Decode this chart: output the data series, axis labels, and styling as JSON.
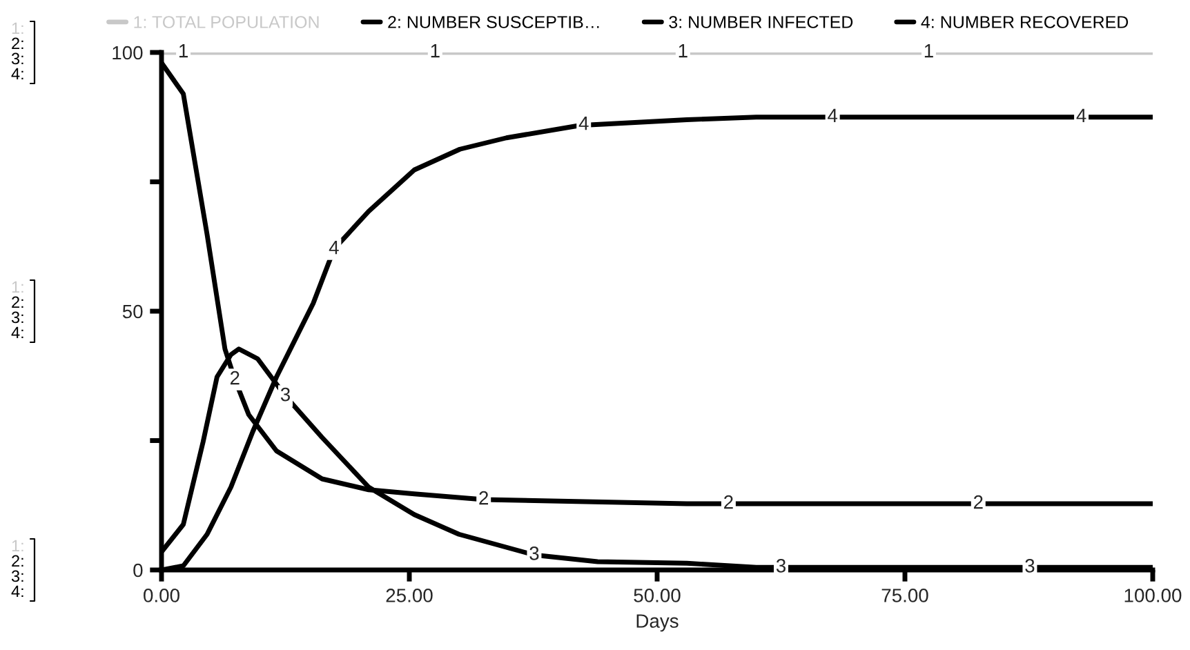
{
  "chart_data": {
    "type": "line",
    "xlabel": "Days",
    "xlim": [
      0,
      100
    ],
    "ylim": [
      0,
      100
    ],
    "xticks": [
      {
        "value": 0,
        "label": "0.00"
      },
      {
        "value": 25,
        "label": "25.00"
      },
      {
        "value": 50,
        "label": "50.00"
      },
      {
        "value": 75,
        "label": "75.00"
      },
      {
        "value": 100,
        "label": "100.00"
      }
    ],
    "yticks": [
      0,
      {
        "value": 25,
        "label": null
      },
      50,
      {
        "value": 75,
        "label": null
      },
      100
    ],
    "grid": false,
    "legend": "top",
    "marker": "none",
    "line_style": "solid",
    "series": [
      {
        "name": "1: TOTAL POPULATION",
        "color": "#c8c8c8",
        "x": [
          0,
          100
        ],
        "values": [
          100,
          100
        ]
      },
      {
        "name": "2: NUMBER SUSCEPTIB…",
        "color": "#000000",
        "x": [
          0,
          2.2,
          4.6,
          6.4,
          7.4,
          8.8,
          11.6,
          16.2,
          20.9,
          25.5,
          32.5,
          53,
          100
        ],
        "values": [
          98,
          92,
          64.8,
          42.7,
          36.8,
          30,
          23,
          17.6,
          15.5,
          14.7,
          13.6,
          12.8,
          12.8
        ]
      },
      {
        "name": "3: NUMBER INFECTED",
        "color": "#000000",
        "x": [
          0,
          2.2,
          4.2,
          5.6,
          7,
          7.8,
          9.7,
          12.5,
          16.2,
          20.9,
          25.5,
          30,
          37.6,
          44,
          53,
          60,
          100
        ],
        "values": [
          3.5,
          8.8,
          24.8,
          37.3,
          41.6,
          42.7,
          40.8,
          33.6,
          25.6,
          16,
          10.7,
          6.9,
          2.9,
          1.6,
          1.3,
          0.5,
          0.5
        ]
      },
      {
        "name": "4: NUMBER RECOVERED",
        "color": "#000000",
        "x": [
          0,
          2.2,
          4.6,
          7,
          9.2,
          11.6,
          15.3,
          17.4,
          20.9,
          25.5,
          30.1,
          34.8,
          42.2,
          53,
          60,
          100
        ],
        "values": [
          0,
          0.8,
          6.9,
          16,
          26.7,
          37.3,
          51.5,
          62,
          69.3,
          77.3,
          81.3,
          83.5,
          85.9,
          87,
          87.5,
          87.5
        ]
      }
    ],
    "annotations": [
      "1:",
      "2:",
      "3:",
      "4:",
      "1:",
      "2:",
      "3:",
      "4:",
      "1:",
      "2:",
      "3:",
      "4:",
      {
        "text": "1",
        "x": 2.2,
        "y": 100
      },
      {
        "text": "1",
        "x": 27.6,
        "y": 100
      },
      {
        "text": "1",
        "x": 52.6,
        "y": 100
      },
      {
        "text": "1",
        "x": 77.4,
        "y": 100
      },
      {
        "text": "2",
        "x": 7.4,
        "y": 36.8
      },
      {
        "text": "2",
        "x": 32.5,
        "y": 13.6
      },
      {
        "text": "2",
        "x": 57.2,
        "y": 12.8
      },
      {
        "text": "2",
        "x": 82.4,
        "y": 12.8
      },
      {
        "text": "3",
        "x": 12.5,
        "y": 33.6
      },
      {
        "text": "3",
        "x": 37.6,
        "y": 2.9
      },
      {
        "text": "3",
        "x": 62.5,
        "y": 0.5
      },
      {
        "text": "3",
        "x": 87.6,
        "y": 0.5
      },
      {
        "text": "4",
        "x": 17.4,
        "y": 62
      },
      {
        "text": "4",
        "x": 42.6,
        "y": 86
      },
      {
        "text": "4",
        "x": 67.7,
        "y": 87.5
      },
      {
        "text": "4",
        "x": 92.8,
        "y": 87.5
      }
    ]
  }
}
